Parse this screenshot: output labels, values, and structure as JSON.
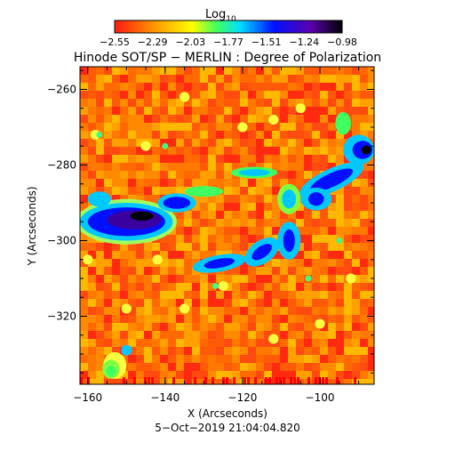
{
  "colorbar": {
    "label_main": "Log",
    "label_sub": "10",
    "ticks": [
      "−2.55",
      "−2.29",
      "−2.03",
      "−1.77",
      "−1.51",
      "−1.24",
      "−0.98"
    ]
  },
  "chart_data": {
    "type": "heatmap",
    "title": "Hinode SOT/SP − MERLIN : Degree of Polarization",
    "xlabel": "X (Arcseconds)",
    "ylabel": "Y (Arcseconds)",
    "xlim": [
      -162,
      -86
    ],
    "ylim": [
      -338,
      -254
    ],
    "xticks": [
      -160,
      -140,
      -120,
      -100
    ],
    "yticks": [
      -260,
      -280,
      -300,
      -320
    ],
    "xtick_labels": [
      "−160",
      "−140",
      "−120",
      "−100"
    ],
    "ytick_labels": [
      "−260",
      "−280",
      "−300",
      "−320"
    ],
    "colorbar_range": [
      -2.55,
      -0.98
    ],
    "colormap": [
      "#ff1a10",
      "#ffd000",
      "#80ff40",
      "#00d8ff",
      "#0018ff",
      "#6000b0",
      "#000000"
    ],
    "timestamp": "5−Oct−2019 21:04:04.820"
  }
}
